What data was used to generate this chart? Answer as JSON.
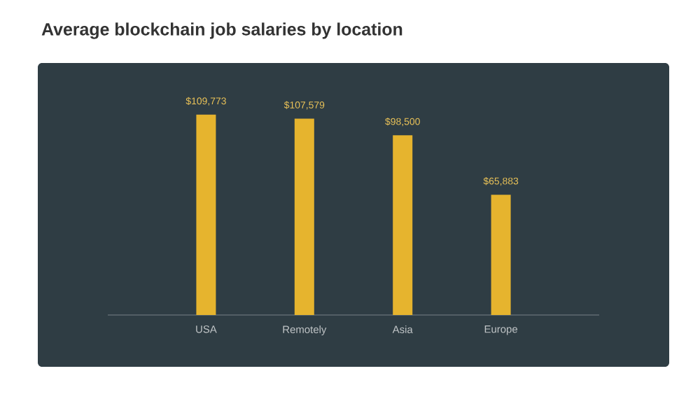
{
  "chart_data": {
    "type": "bar",
    "title": "Average blockchain job salaries by location",
    "categories": [
      "USA",
      "Remotely",
      "Asia",
      "Europe"
    ],
    "values": [
      109773,
      107579,
      98500,
      65883
    ],
    "value_labels": [
      "$109,773",
      "$107,579",
      "$98,500",
      "$65,883"
    ],
    "color": "#e6b42e"
  }
}
